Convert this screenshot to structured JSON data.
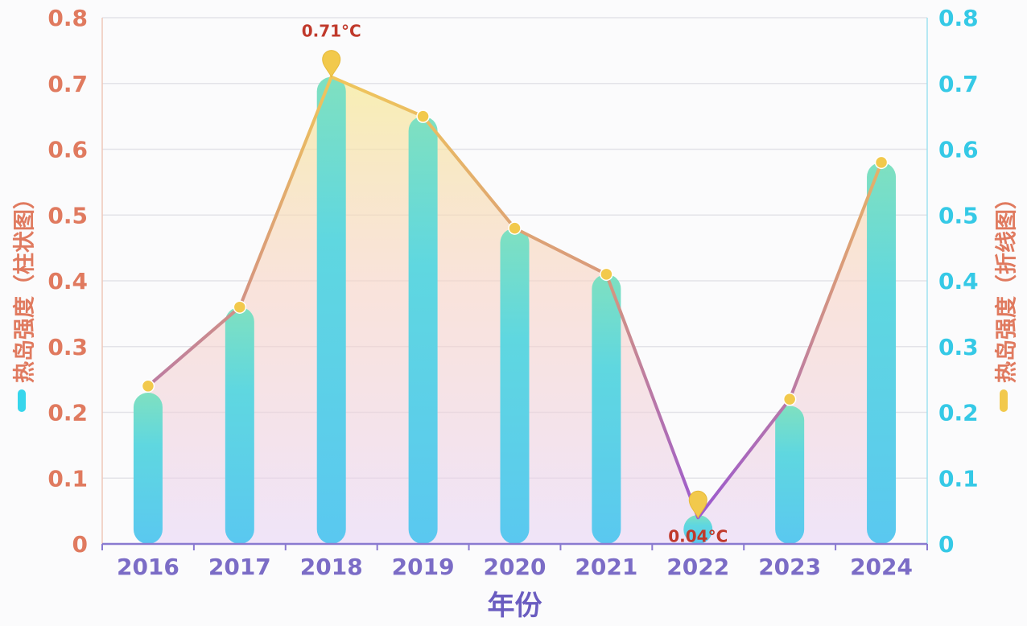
{
  "chart_data": {
    "type": "bar+line",
    "categories": [
      "2016",
      "2017",
      "2018",
      "2019",
      "2020",
      "2021",
      "2022",
      "2023",
      "2024"
    ],
    "series": [
      {
        "name": "热岛强度（柱状图）",
        "type": "bar",
        "axis": "left",
        "values": [
          0.23,
          0.36,
          0.71,
          0.65,
          0.48,
          0.41,
          0.03,
          0.21,
          0.58
        ],
        "color": "#37d6ec"
      },
      {
        "name": "热岛强度（折线图）",
        "type": "line",
        "axis": "right",
        "values": [
          0.24,
          0.36,
          0.71,
          0.65,
          0.48,
          0.41,
          0.04,
          0.22,
          0.58
        ],
        "color": "#f2c94c"
      }
    ],
    "xlabel": "年份",
    "ylabel_left": "热岛强度（柱状图）",
    "ylabel_right": "热岛强度（折线图）",
    "ylim_left": [
      0,
      0.8
    ],
    "ylim_right": [
      0,
      0.8
    ],
    "yticks": [
      "0",
      "0.1",
      "0.2",
      "0.3",
      "0.4",
      "0.5",
      "0.6",
      "0.7",
      "0.8"
    ],
    "annotations": [
      {
        "category": "2018",
        "text": "0.71°C",
        "position": "above"
      },
      {
        "category": "2022",
        "text": "0.04°C",
        "position": "below"
      }
    ],
    "grid": true,
    "colors": {
      "left_axis": "#e07a5f",
      "right_axis": "#35c9e6",
      "x_axis": "#7b6cc6",
      "marker": "#f2c94c",
      "line_top": "#f0c75a",
      "line_bottom": "#9b59d0"
    }
  }
}
